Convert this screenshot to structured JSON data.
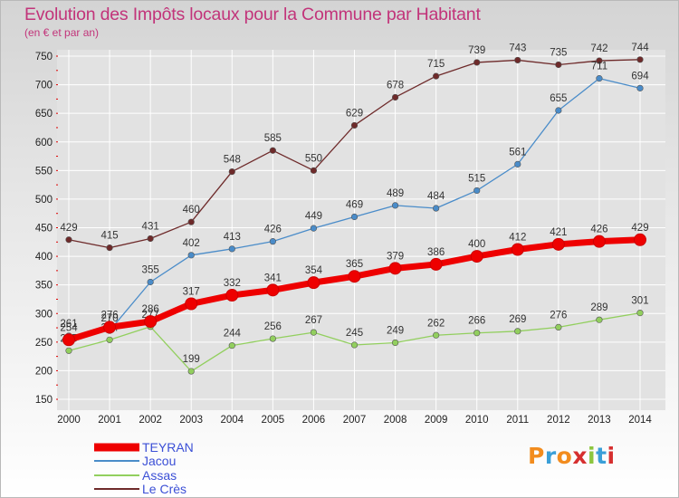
{
  "header": {
    "title": "Evolution des Impôts locaux pour la Commune par Habitant",
    "subtitle": "(en € et par an)"
  },
  "logo": {
    "text": "Proxiti"
  },
  "chart_data": {
    "type": "line",
    "title": "Evolution des Impôts locaux pour la Commune par Habitant",
    "subtitle": "(en € et par an)",
    "x": [
      "2000",
      "2001",
      "2002",
      "2003",
      "2004",
      "2005",
      "2006",
      "2007",
      "2008",
      "2009",
      "2010",
      "2011",
      "2012",
      "2013",
      "2014"
    ],
    "ylim": [
      150,
      750
    ],
    "yticks": [
      150,
      200,
      250,
      300,
      350,
      400,
      450,
      500,
      550,
      600,
      650,
      700,
      750
    ],
    "grid": true,
    "legend_position": "bottom-left",
    "series": [
      {
        "name": "Le Crès",
        "color": "#6e2a2a",
        "values": [
          429,
          415,
          431,
          460,
          548,
          585,
          550,
          629,
          678,
          715,
          739,
          743,
          735,
          742,
          744
        ]
      },
      {
        "name": "Jacou",
        "color": "#4a8cc9",
        "values": [
          261,
          270,
          355,
          402,
          413,
          426,
          449,
          469,
          489,
          484,
          515,
          561,
          655,
          711,
          694
        ]
      },
      {
        "name": "Assas",
        "color": "#92cf5e",
        "values": [
          235,
          254,
          277,
          199,
          244,
          256,
          267,
          245,
          249,
          262,
          266,
          269,
          276,
          289,
          301
        ]
      },
      {
        "name": "TEYRAN",
        "color": "#ee0000",
        "values": [
          254,
          276,
          286,
          317,
          332,
          341,
          354,
          365,
          379,
          386,
          400,
          412,
          421,
          426,
          429
        ]
      }
    ],
    "legend_order": [
      "TEYRAN",
      "Jacou",
      "Assas",
      "Le Crès"
    ]
  }
}
